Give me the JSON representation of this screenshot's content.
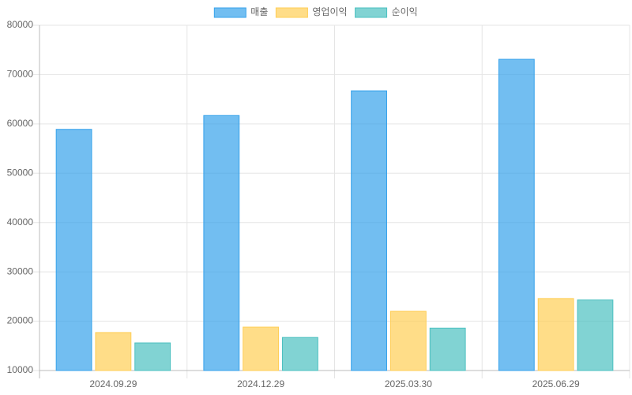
{
  "chart_data": {
    "type": "bar",
    "categories": [
      "2024.09.29",
      "2024.12.29",
      "2025.03.30",
      "2025.06.29"
    ],
    "series": [
      {
        "name": "매출",
        "color": "#36a2eb",
        "values": [
          58900,
          61700,
          66700,
          73100
        ]
      },
      {
        "name": "영업이익",
        "color": "#ffce56",
        "values": [
          17700,
          18800,
          22000,
          24600
        ]
      },
      {
        "name": "순이익",
        "color": "#4bc0c0",
        "values": [
          15600,
          16700,
          18600,
          24300
        ]
      }
    ],
    "ylim": [
      10000,
      80000
    ],
    "yticks": [
      10000,
      20000,
      30000,
      40000,
      50000,
      60000,
      70000,
      80000
    ],
    "grid": true,
    "legend": "top"
  }
}
